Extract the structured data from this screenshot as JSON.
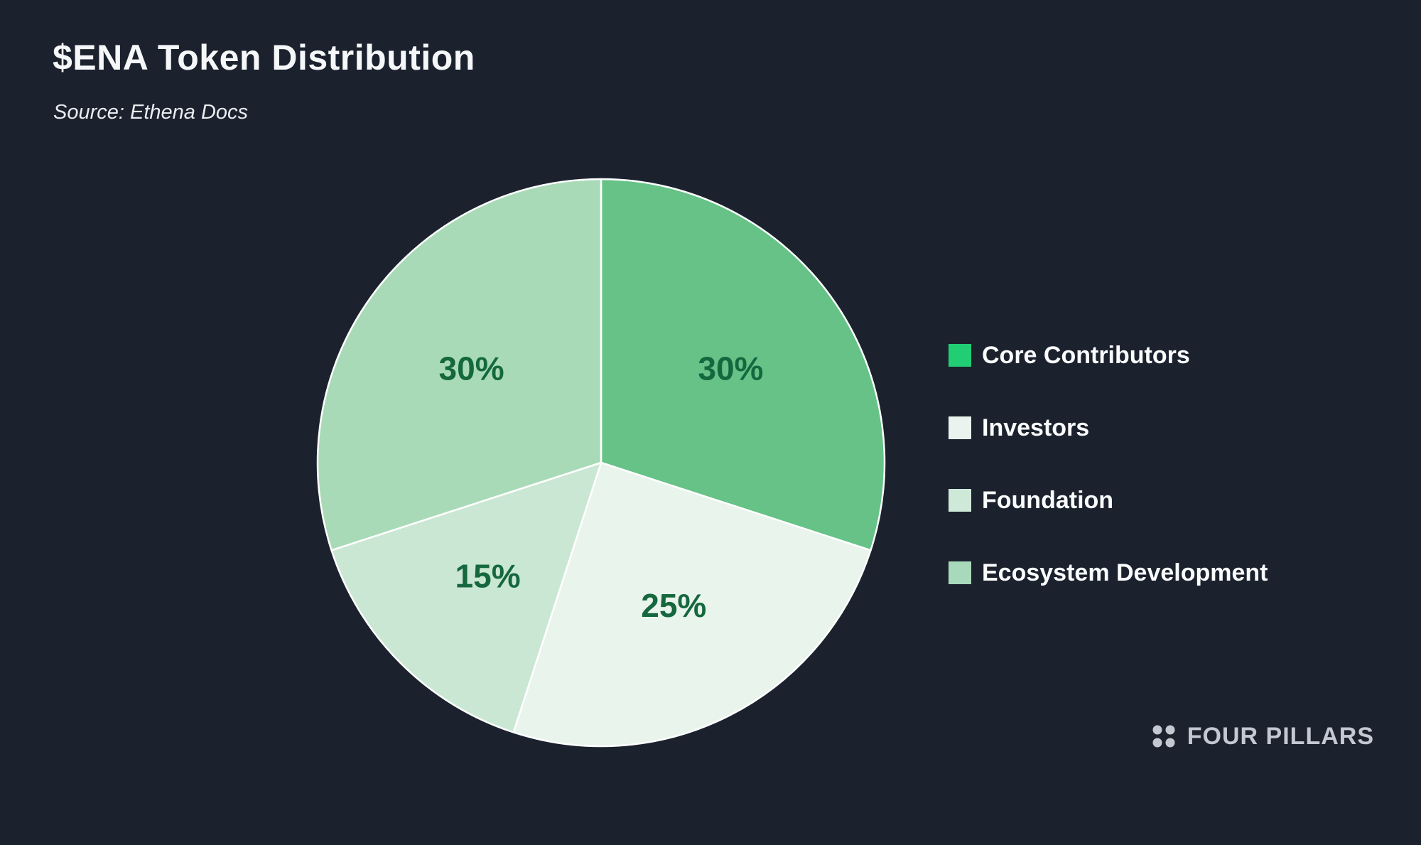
{
  "colors": {
    "background": "#1b222e"
  },
  "header": {
    "title": "$ENA Token Distribution",
    "source": "Source: Ethena Docs"
  },
  "chart_data": {
    "type": "pie",
    "title": "$ENA Token Distribution",
    "source": "Source: Ethena Docs",
    "categories": [
      "Core Contributors",
      "Investors",
      "Foundation",
      "Ecosystem Development"
    ],
    "values": [
      30,
      25,
      15,
      30
    ],
    "unit": "%",
    "data_labels": [
      "30%",
      "25%",
      "15%",
      "30%"
    ],
    "slice_colors": [
      "#66c287",
      "#e9f4ec",
      "#cae7d3",
      "#a9dab7"
    ],
    "slice_border_color": "#ffffff",
    "label_color": "#15683e",
    "start_angle": "top",
    "direction": "clockwise",
    "legend_position": "right"
  },
  "legend": {
    "items": [
      {
        "label": "Core Contributors",
        "color": "#21ce73"
      },
      {
        "label": "Investors",
        "color": "#e8f4ed"
      },
      {
        "label": "Foundation",
        "color": "#cfe9d9"
      },
      {
        "label": "Ecosystem Development",
        "color": "#a9d9bb"
      }
    ]
  },
  "branding": {
    "logo_text": "FOUR PILLARS",
    "logo_icon": "four-dots-icon",
    "logo_color": "#c3c8d1"
  }
}
